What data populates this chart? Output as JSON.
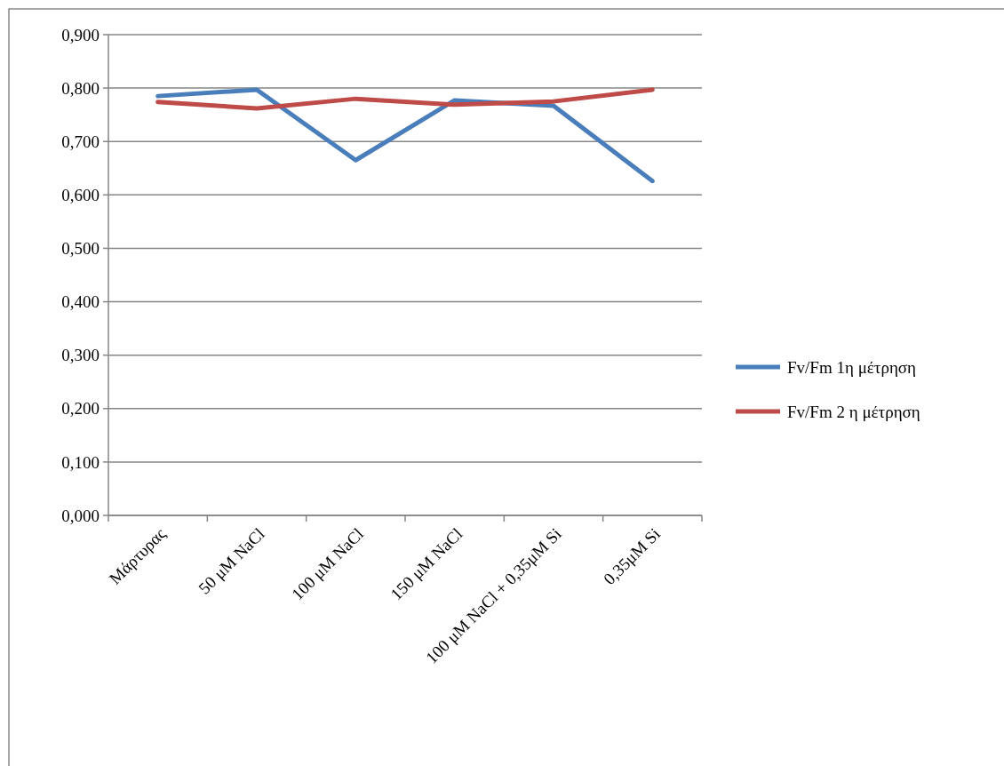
{
  "chart_data": {
    "type": "line",
    "categories": [
      "Μάρτυρας",
      "50 μM NaCl",
      "100 μM NaCl",
      "150 μM NaCl",
      "100 μM NaCl + 0,35μM Si",
      "0,35μM Si"
    ],
    "series": [
      {
        "name": "Fv/Fm 1η μέτρηση",
        "color": "#4a7ebb",
        "values": [
          0.785,
          0.797,
          0.665,
          0.777,
          0.767,
          0.626
        ]
      },
      {
        "name": "Fv/Fm 2 η μέτρηση",
        "color": "#be4b48",
        "values": [
          0.774,
          0.762,
          0.78,
          0.769,
          0.775,
          0.797
        ]
      }
    ],
    "ylim": [
      0,
      0.9
    ],
    "yticks": [
      {
        "value": 0,
        "label": "0,000"
      },
      {
        "value": 0.1,
        "label": "0,100"
      },
      {
        "value": 0.2,
        "label": "0,200"
      },
      {
        "value": 0.3,
        "label": "0,300"
      },
      {
        "value": 0.4,
        "label": "0,400"
      },
      {
        "value": 0.5,
        "label": "0,500"
      },
      {
        "value": 0.6,
        "label": "0,600"
      },
      {
        "value": 0.7,
        "label": "0,700"
      },
      {
        "value": 0.8,
        "label": "0,800"
      },
      {
        "value": 0.9,
        "label": "0,900"
      }
    ],
    "grid": "y",
    "legend": "right",
    "marker": "none",
    "line_style": "solid"
  }
}
